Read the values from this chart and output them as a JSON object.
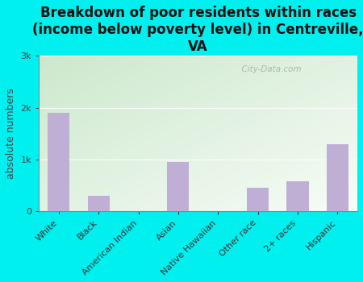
{
  "title": "Breakdown of poor residents within races\n(income below poverty level) in Centreville,\nVA",
  "categories": [
    "White",
    "Black",
    "American Indian",
    "Asian",
    "Native Hawaiian",
    "Other race",
    "2+ races",
    "Hispanic"
  ],
  "values": [
    1900,
    300,
    0,
    950,
    0,
    450,
    580,
    1300
  ],
  "bar_color": "#c0afd4",
  "bg_color": "#00efef",
  "plot_bg_topleft": [
    0.8,
    0.91,
    0.8
  ],
  "plot_bg_bottomright": [
    0.97,
    0.99,
    0.97
  ],
  "ylabel": "absolute numbers",
  "ylim": [
    0,
    3000
  ],
  "yticks": [
    0,
    1000,
    2000,
    3000
  ],
  "ytick_labels": [
    "0",
    "1k",
    "2k",
    "3k"
  ],
  "title_fontsize": 12,
  "label_fontsize": 9,
  "tick_fontsize": 8,
  "watermark": "  City-Data.com"
}
